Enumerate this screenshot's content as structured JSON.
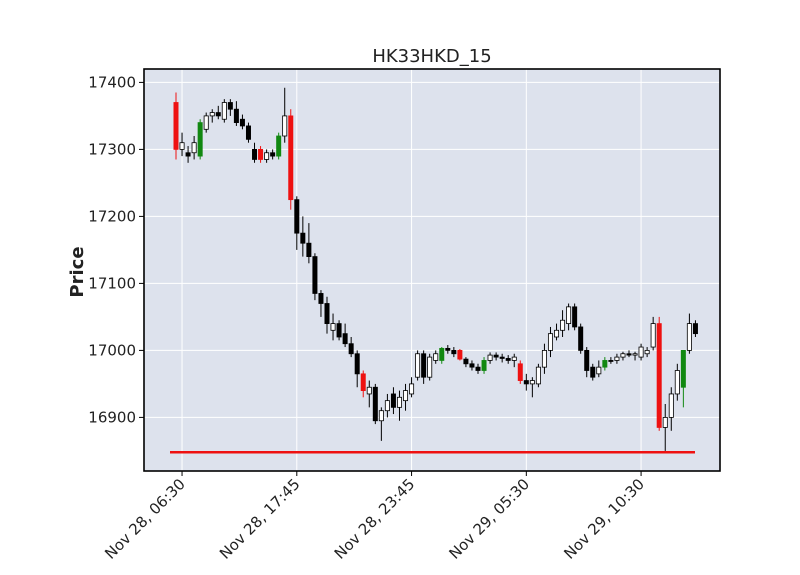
{
  "chart_data": {
    "type": "candlestick",
    "title": "HK33HKD_15",
    "ylabel": "Price",
    "ylim": [
      16820,
      17420
    ],
    "y_ticks": [
      16900,
      17000,
      17100,
      17200,
      17300,
      17400
    ],
    "x_tick_labels": [
      "Nov 28, 06:30",
      "Nov 28, 17:45",
      "Nov 28, 23:45",
      "Nov 29, 05:30",
      "Nov 29, 10:30"
    ],
    "x_tick_index": [
      1,
      20,
      39,
      58,
      77
    ],
    "grid": true,
    "colors": {
      "background": "#dde2ed",
      "up": "#ffffff",
      "down": "#000000",
      "signal_up": "#118811",
      "signal_down": "#ee1111",
      "hline": "#ee1111"
    },
    "hline": {
      "value": 16848,
      "color": "#ee1111"
    },
    "candles": [
      {
        "o": 17300,
        "h": 17385,
        "l": 17285,
        "c": 17370,
        "color": "red"
      },
      {
        "o": 17310,
        "h": 17325,
        "l": 17290,
        "c": 17300,
        "color": "white"
      },
      {
        "o": 17290,
        "h": 17305,
        "l": 17280,
        "c": 17295,
        "color": "black"
      },
      {
        "o": 17295,
        "h": 17320,
        "l": 17285,
        "c": 17310,
        "color": "white"
      },
      {
        "o": 17290,
        "h": 17345,
        "l": 17285,
        "c": 17340,
        "color": "green"
      },
      {
        "o": 17330,
        "h": 17355,
        "l": 17325,
        "c": 17350,
        "color": "white"
      },
      {
        "o": 17350,
        "h": 17360,
        "l": 17340,
        "c": 17355,
        "color": "white"
      },
      {
        "o": 17355,
        "h": 17365,
        "l": 17345,
        "c": 17350,
        "color": "black"
      },
      {
        "o": 17345,
        "h": 17375,
        "l": 17340,
        "c": 17370,
        "color": "white"
      },
      {
        "o": 17370,
        "h": 17375,
        "l": 17350,
        "c": 17360,
        "color": "black"
      },
      {
        "o": 17360,
        "h": 17372,
        "l": 17335,
        "c": 17340,
        "color": "black"
      },
      {
        "o": 17345,
        "h": 17352,
        "l": 17330,
        "c": 17335,
        "color": "black"
      },
      {
        "o": 17335,
        "h": 17340,
        "l": 17310,
        "c": 17315,
        "color": "black"
      },
      {
        "o": 17300,
        "h": 17310,
        "l": 17280,
        "c": 17285,
        "color": "black"
      },
      {
        "o": 17300,
        "h": 17305,
        "l": 17280,
        "c": 17285,
        "color": "red"
      },
      {
        "o": 17285,
        "h": 17300,
        "l": 17280,
        "c": 17295,
        "color": "white"
      },
      {
        "o": 17290,
        "h": 17300,
        "l": 17285,
        "c": 17295,
        "color": "black"
      },
      {
        "o": 17290,
        "h": 17325,
        "l": 17285,
        "c": 17320,
        "color": "green"
      },
      {
        "o": 17320,
        "h": 17392,
        "l": 17310,
        "c": 17350,
        "color": "white"
      },
      {
        "o": 17350,
        "h": 17360,
        "l": 17210,
        "c": 17225,
        "color": "red"
      },
      {
        "o": 17225,
        "h": 17230,
        "l": 17150,
        "c": 17175,
        "color": "black"
      },
      {
        "o": 17175,
        "h": 17200,
        "l": 17140,
        "c": 17160,
        "color": "black"
      },
      {
        "o": 17160,
        "h": 17190,
        "l": 17130,
        "c": 17140,
        "color": "black"
      },
      {
        "o": 17140,
        "h": 17145,
        "l": 17075,
        "c": 17085,
        "color": "black"
      },
      {
        "o": 17085,
        "h": 17090,
        "l": 17050,
        "c": 17070,
        "color": "black"
      },
      {
        "o": 17070,
        "h": 17080,
        "l": 17025,
        "c": 17040,
        "color": "black"
      },
      {
        "o": 17040,
        "h": 17055,
        "l": 17015,
        "c": 17030,
        "color": "white"
      },
      {
        "o": 17040,
        "h": 17045,
        "l": 17015,
        "c": 17020,
        "color": "black"
      },
      {
        "o": 17025,
        "h": 17040,
        "l": 17005,
        "c": 17010,
        "color": "black"
      },
      {
        "o": 17010,
        "h": 17020,
        "l": 16990,
        "c": 16995,
        "color": "black"
      },
      {
        "o": 16995,
        "h": 17000,
        "l": 16945,
        "c": 16965,
        "color": "black"
      },
      {
        "o": 16965,
        "h": 16970,
        "l": 16930,
        "c": 16940,
        "color": "red"
      },
      {
        "o": 16945,
        "h": 16955,
        "l": 16915,
        "c": 16935,
        "color": "white"
      },
      {
        "o": 16945,
        "h": 16950,
        "l": 16890,
        "c": 16895,
        "color": "black"
      },
      {
        "o": 16895,
        "h": 16915,
        "l": 16865,
        "c": 16910,
        "color": "white"
      },
      {
        "o": 16910,
        "h": 16935,
        "l": 16900,
        "c": 16925,
        "color": "white"
      },
      {
        "o": 16935,
        "h": 16945,
        "l": 16905,
        "c": 16915,
        "color": "black"
      },
      {
        "o": 16915,
        "h": 16940,
        "l": 16895,
        "c": 16930,
        "color": "white"
      },
      {
        "o": 16925,
        "h": 16950,
        "l": 16910,
        "c": 16940,
        "color": "white"
      },
      {
        "o": 16935,
        "h": 16960,
        "l": 16930,
        "c": 16950,
        "color": "white"
      },
      {
        "o": 16960,
        "h": 17000,
        "l": 16955,
        "c": 16995,
        "color": "white"
      },
      {
        "o": 16995,
        "h": 17000,
        "l": 16950,
        "c": 16960,
        "color": "black"
      },
      {
        "o": 16960,
        "h": 16995,
        "l": 16955,
        "c": 16990,
        "color": "white"
      },
      {
        "o": 16985,
        "h": 17000,
        "l": 16980,
        "c": 16995,
        "color": "white"
      },
      {
        "o": 16985,
        "h": 17005,
        "l": 16980,
        "c": 17003,
        "color": "green"
      },
      {
        "o": 17003,
        "h": 17008,
        "l": 16995,
        "c": 17000,
        "color": "black"
      },
      {
        "o": 17000,
        "h": 17005,
        "l": 16990,
        "c": 16995,
        "color": "black"
      },
      {
        "o": 17000,
        "h": 17002,
        "l": 16985,
        "c": 16987,
        "color": "red"
      },
      {
        "o": 16987,
        "h": 16990,
        "l": 16975,
        "c": 16980,
        "color": "black"
      },
      {
        "o": 16980,
        "h": 16985,
        "l": 16970,
        "c": 16975,
        "color": "black"
      },
      {
        "o": 16975,
        "h": 16980,
        "l": 16965,
        "c": 16970,
        "color": "black"
      },
      {
        "o": 16970,
        "h": 16990,
        "l": 16965,
        "c": 16985,
        "color": "green"
      },
      {
        "o": 16985,
        "h": 16997,
        "l": 16980,
        "c": 16993,
        "color": "white"
      },
      {
        "o": 16993,
        "h": 16997,
        "l": 16985,
        "c": 16990,
        "color": "black"
      },
      {
        "o": 16990,
        "h": 16995,
        "l": 16982,
        "c": 16988,
        "color": "black"
      },
      {
        "o": 16988,
        "h": 16993,
        "l": 16980,
        "c": 16985,
        "color": "black"
      },
      {
        "o": 16985,
        "h": 16995,
        "l": 16975,
        "c": 16990,
        "color": "white"
      },
      {
        "o": 16980,
        "h": 16985,
        "l": 16950,
        "c": 16955,
        "color": "red"
      },
      {
        "o": 16955,
        "h": 16965,
        "l": 16940,
        "c": 16950,
        "color": "black"
      },
      {
        "o": 16950,
        "h": 16960,
        "l": 16930,
        "c": 16955,
        "color": "white"
      },
      {
        "o": 16950,
        "h": 16980,
        "l": 16945,
        "c": 16975,
        "color": "white"
      },
      {
        "o": 16975,
        "h": 17010,
        "l": 16965,
        "c": 17000,
        "color": "white"
      },
      {
        "o": 17000,
        "h": 17035,
        "l": 16990,
        "c": 17025,
        "color": "white"
      },
      {
        "o": 17020,
        "h": 17040,
        "l": 17015,
        "c": 17030,
        "color": "white"
      },
      {
        "o": 17030,
        "h": 17060,
        "l": 17020,
        "c": 17045,
        "color": "white"
      },
      {
        "o": 17040,
        "h": 17070,
        "l": 17030,
        "c": 17065,
        "color": "white"
      },
      {
        "o": 17065,
        "h": 17070,
        "l": 17030,
        "c": 17035,
        "color": "black"
      },
      {
        "o": 17035,
        "h": 17040,
        "l": 16995,
        "c": 17000,
        "color": "black"
      },
      {
        "o": 17000,
        "h": 17005,
        "l": 16960,
        "c": 16970,
        "color": "black"
      },
      {
        "o": 16975,
        "h": 16980,
        "l": 16955,
        "c": 16960,
        "color": "black"
      },
      {
        "o": 16965,
        "h": 16985,
        "l": 16960,
        "c": 16975,
        "color": "white"
      },
      {
        "o": 16975,
        "h": 16990,
        "l": 16970,
        "c": 16985,
        "color": "green"
      },
      {
        "o": 16985,
        "h": 16990,
        "l": 16980,
        "c": 16985,
        "color": "black"
      },
      {
        "o": 16985,
        "h": 16995,
        "l": 16980,
        "c": 16990,
        "color": "white"
      },
      {
        "o": 16990,
        "h": 16998,
        "l": 16985,
        "c": 16995,
        "color": "white"
      },
      {
        "o": 16995,
        "h": 17000,
        "l": 16990,
        "c": 16993,
        "color": "black"
      },
      {
        "o": 16993,
        "h": 16998,
        "l": 16985,
        "c": 16995,
        "color": "white"
      },
      {
        "o": 16990,
        "h": 17010,
        "l": 16985,
        "c": 17005,
        "color": "white"
      },
      {
        "o": 16995,
        "h": 17005,
        "l": 16990,
        "c": 17000,
        "color": "white"
      },
      {
        "o": 17005,
        "h": 17050,
        "l": 17000,
        "c": 17040,
        "color": "white"
      },
      {
        "o": 17040,
        "h": 17050,
        "l": 16880,
        "c": 16885,
        "color": "red"
      },
      {
        "o": 16885,
        "h": 16920,
        "l": 16850,
        "c": 16900,
        "color": "white"
      },
      {
        "o": 16900,
        "h": 16945,
        "l": 16880,
        "c": 16935,
        "color": "white"
      },
      {
        "o": 16935,
        "h": 16980,
        "l": 16925,
        "c": 16970,
        "color": "white"
      },
      {
        "o": 16945,
        "h": 17000,
        "l": 16915,
        "c": 17000,
        "color": "green"
      },
      {
        "o": 17000,
        "h": 17055,
        "l": 16995,
        "c": 17040,
        "color": "white"
      },
      {
        "o": 17040,
        "h": 17045,
        "l": 17020,
        "c": 17025,
        "color": "black"
      }
    ]
  }
}
